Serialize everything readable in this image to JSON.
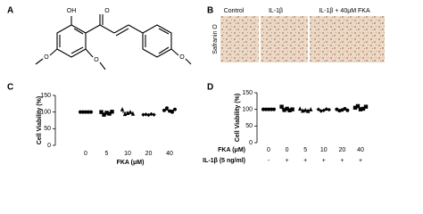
{
  "panels": {
    "a": {
      "label": "A",
      "atoms": [
        "OH",
        "O",
        "O",
        "O",
        "O"
      ]
    },
    "b": {
      "label": "B",
      "stain": "Safranin O",
      "images": [
        "Control",
        "IL-1β",
        "IL-1β + 40μM FKA"
      ]
    }
  },
  "chart_data": [
    {
      "type": "scatter",
      "label": "C",
      "ylabel": "Cell Viability (%)",
      "xlabel": "FKA (μM)",
      "categories": [
        "0",
        "5",
        "10",
        "20",
        "40"
      ],
      "points": [
        [
          100,
          100,
          100,
          100,
          100
        ],
        [
          100,
          92,
          98,
          95,
          101
        ],
        [
          108,
          94,
          97,
          100,
          95
        ],
        [
          92,
          93,
          91,
          94,
          92
        ],
        [
          105,
          112,
          103,
          100,
          108
        ]
      ],
      "means": [
        100,
        97,
        99,
        92,
        106
      ],
      "ylim": [
        0,
        150
      ],
      "yticks": [
        0,
        50,
        100,
        150
      ],
      "color": "#000000"
    },
    {
      "type": "scatter",
      "label": "D",
      "ylabel": "Cell Viability (%)",
      "xlabel": "FKA (μM)",
      "xlabel2": "IL-1β (5 ng/ml)",
      "categories": [
        "0",
        "0",
        "5",
        "10",
        "20",
        "40"
      ],
      "categories2": [
        "-",
        "+",
        "+",
        "+",
        "+",
        "+"
      ],
      "points": [
        [
          100,
          100,
          100,
          100,
          100
        ],
        [
          108,
          98,
          102,
          97,
          100
        ],
        [
          102,
          96,
          98,
          95,
          100
        ],
        [
          100,
          95,
          97,
          101,
          99
        ],
        [
          100,
          96,
          98,
          102,
          97
        ],
        [
          105,
          110,
          100,
          102,
          108
        ]
      ],
      "means": [
        100,
        101,
        98,
        98,
        99,
        105
      ],
      "ylim": [
        0,
        150
      ],
      "yticks": [
        0,
        50,
        100,
        150
      ],
      "color": "#000000"
    }
  ]
}
